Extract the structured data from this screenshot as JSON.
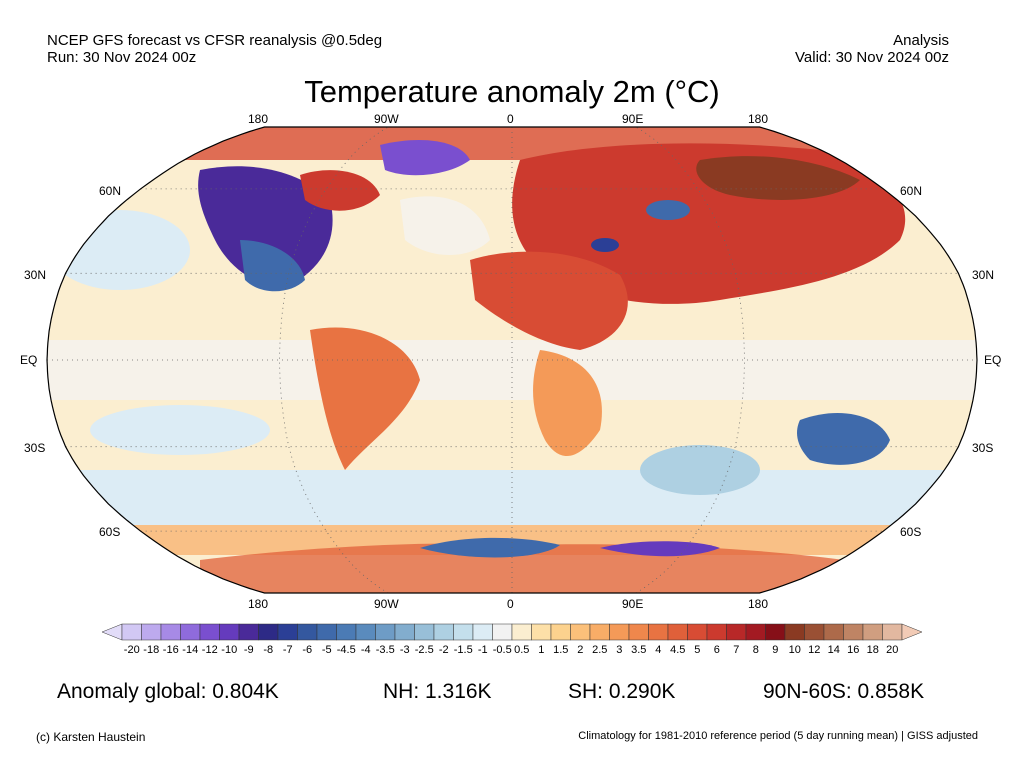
{
  "header": {
    "line1_left": "NCEP GFS forecast vs CFSR reanalysis @0.5deg",
    "line2_left": "Run: 30 Nov 2024 00z",
    "line1_right": "Analysis",
    "line2_right": "Valid: 30 Nov 2024 00z"
  },
  "title": "Temperature anomaly 2m (°C)",
  "map": {
    "lon_labels": [
      "180",
      "90W",
      "0",
      "90E",
      "180"
    ],
    "lat_labels": [
      "60N",
      "30N",
      "EQ",
      "30S",
      "60S"
    ],
    "projection": "Robinson",
    "graticule": "dotted"
  },
  "colorbar": {
    "tick_labels": [
      "-20",
      "-18",
      "-16",
      "-14",
      "-12",
      "-10",
      "-9",
      "-8",
      "-7",
      "-6",
      "-5",
      "-4.5",
      "-4",
      "-3.5",
      "-3",
      "-2.5",
      "-2",
      "-1.5",
      "-1",
      "-0.5",
      "0.5",
      "1",
      "1.5",
      "2",
      "2.5",
      "3",
      "3.5",
      "4",
      "4.5",
      "5",
      "6",
      "7",
      "8",
      "9",
      "10",
      "12",
      "14",
      "16",
      "18",
      "20"
    ],
    "colors": [
      "#d2c8f4",
      "#bdaaee",
      "#a78ae6",
      "#8f6bdc",
      "#7a4fcf",
      "#653bbd",
      "#4a2a99",
      "#2d2a86",
      "#2b3f96",
      "#34589f",
      "#3f6aab",
      "#4b7bb5",
      "#5a8bbd",
      "#6e9cc6",
      "#82adce",
      "#98bfd8",
      "#aed0e2",
      "#c4dfec",
      "#dcecf5",
      "#f2f2f2",
      "#fbeed0",
      "#fde0a8",
      "#fcd28e",
      "#fbc07a",
      "#f8ad67",
      "#f49a58",
      "#ef874c",
      "#e87342",
      "#e0603a",
      "#d84c34",
      "#cc3a2e",
      "#b82828",
      "#a31a22",
      "#860f18",
      "#8a3a22",
      "#9a5034",
      "#ad6a4a",
      "#bf8464",
      "#d09e80",
      "#e2b8a0"
    ],
    "under_color": "#e2dcf8",
    "over_color": "#f2cbb6"
  },
  "stats": {
    "global": "Anomaly global: 0.804K",
    "nh": "NH: 1.316K",
    "sh": "SH: 0.290K",
    "arctic": "90N-60S: 0.858K"
  },
  "footer": {
    "credit": "(c) Karsten Haustein",
    "note": "Climatology for 1981-2010 reference period (5 day running mean) | GISS adjusted"
  }
}
